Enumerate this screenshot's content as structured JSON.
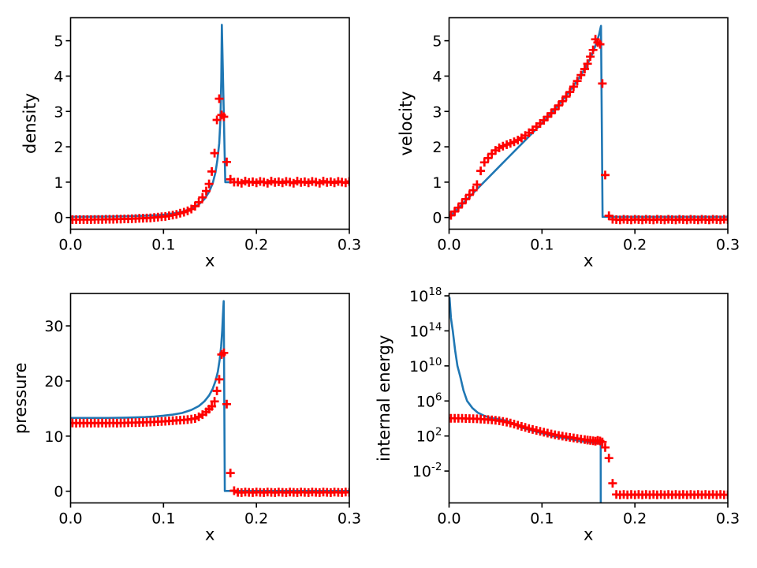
{
  "figure": {
    "background": "#ffffff",
    "description_title": "",
    "line_color": "#1f77b4",
    "marker_color": "#ff0000",
    "axis_color": "#000000"
  },
  "chart_data": {
    "type": "line",
    "layout": "2x2-panels",
    "grid": "off",
    "legend": "none",
    "shared_marker_x": [
      0.002,
      0.006,
      0.01,
      0.014,
      0.018,
      0.022,
      0.026,
      0.03,
      0.034,
      0.038,
      0.042,
      0.046,
      0.05,
      0.054,
      0.058,
      0.062,
      0.066,
      0.07,
      0.074,
      0.078,
      0.082,
      0.086,
      0.09,
      0.094,
      0.098,
      0.102,
      0.106,
      0.11,
      0.114,
      0.118,
      0.122,
      0.126,
      0.13,
      0.134,
      0.138,
      0.142,
      0.146,
      0.149,
      0.152,
      0.155,
      0.1575,
      0.16,
      0.1625,
      0.165,
      0.168,
      0.172,
      0.176,
      0.18,
      0.184,
      0.188,
      0.192,
      0.196,
      0.2,
      0.204,
      0.208,
      0.212,
      0.216,
      0.22,
      0.224,
      0.228,
      0.232,
      0.236,
      0.24,
      0.244,
      0.248,
      0.252,
      0.256,
      0.26,
      0.264,
      0.268,
      0.272,
      0.276,
      0.28,
      0.284,
      0.288,
      0.292,
      0.296,
      0.3
    ],
    "panels": [
      {
        "id": "density",
        "xlabel": "x",
        "ylabel": "density",
        "yscale": "linear",
        "xlim": [
          0,
          0.3
        ],
        "ylim": [
          -0.33,
          5.65
        ],
        "xticks": [
          0,
          0.1,
          0.2,
          0.3
        ],
        "xticklabels": [
          "0.0",
          "0.1",
          "0.2",
          "0.3"
        ],
        "yticks": [
          0,
          1,
          2,
          3,
          4,
          5
        ],
        "yticklabels": [
          "0",
          "1",
          "2",
          "3",
          "4",
          "5"
        ],
        "line": {
          "x": [
            0,
            0.02,
            0.04,
            0.06,
            0.08,
            0.09,
            0.1,
            0.11,
            0.12,
            0.13,
            0.138,
            0.144,
            0.149,
            0.153,
            0.156,
            0.158,
            0.16,
            0.1613,
            0.1622,
            0.1628,
            0.1665,
            0.3
          ],
          "y": [
            0.02,
            0.022,
            0.027,
            0.035,
            0.05,
            0.062,
            0.08,
            0.112,
            0.16,
            0.25,
            0.37,
            0.52,
            0.72,
            0.97,
            1.28,
            1.63,
            2.1,
            2.8,
            3.9,
            5.45,
            1.0,
            1.0
          ]
        },
        "markers_y": [
          -0.06,
          -0.06,
          -0.06,
          -0.06,
          -0.06,
          -0.06,
          -0.055,
          -0.055,
          -0.055,
          -0.05,
          -0.05,
          -0.05,
          -0.045,
          -0.045,
          -0.04,
          -0.04,
          -0.035,
          -0.03,
          -0.025,
          -0.02,
          -0.015,
          -0.01,
          0.0,
          0.01,
          0.02,
          0.03,
          0.05,
          0.07,
          0.09,
          0.12,
          0.15,
          0.19,
          0.24,
          0.32,
          0.43,
          0.57,
          0.75,
          0.95,
          1.3,
          1.82,
          2.76,
          3.36,
          2.9,
          2.85,
          1.57,
          1.08,
          1.0,
          1.0,
          0.97,
          1.03,
          0.99,
          1.01,
          0.98,
          1.02,
          1.0,
          0.97,
          1.03,
          0.99,
          1.01,
          0.98,
          1.02,
          1.0,
          0.97,
          1.03,
          0.99,
          1.01,
          0.98,
          1.02,
          1.0,
          0.97,
          1.03,
          0.99,
          1.01,
          0.98,
          1.02,
          1.0,
          0.98,
          1.02
        ]
      },
      {
        "id": "velocity",
        "xlabel": "x",
        "ylabel": "velocity",
        "yscale": "linear",
        "xlim": [
          0,
          0.3
        ],
        "ylim": [
          -0.33,
          5.65
        ],
        "xticks": [
          0,
          0.1,
          0.2,
          0.3
        ],
        "xticklabels": [
          "0.0",
          "0.1",
          "0.2",
          "0.3"
        ],
        "yticks": [
          0,
          1,
          2,
          3,
          4,
          5
        ],
        "yticklabels": [
          "0",
          "1",
          "2",
          "3",
          "4",
          "5"
        ],
        "line": {
          "x": [
            0,
            0.03,
            0.06,
            0.09,
            0.1,
            0.11,
            0.12,
            0.13,
            0.14,
            0.147,
            0.152,
            0.156,
            0.159,
            0.1615,
            0.1635,
            0.1652,
            0.3
          ],
          "y": [
            0,
            0.8,
            1.6,
            2.4,
            2.67,
            2.95,
            3.25,
            3.58,
            3.95,
            4.25,
            4.5,
            4.75,
            4.97,
            5.18,
            5.42,
            0.02,
            0.02
          ]
        },
        "markers_y": [
          0.06,
          0.17,
          0.28,
          0.4,
          0.52,
          0.64,
          0.77,
          0.93,
          1.32,
          1.56,
          1.68,
          1.8,
          1.9,
          1.97,
          2.02,
          2.06,
          2.1,
          2.14,
          2.19,
          2.25,
          2.32,
          2.4,
          2.48,
          2.57,
          2.66,
          2.75,
          2.85,
          2.95,
          3.06,
          3.17,
          3.29,
          3.42,
          3.55,
          3.7,
          3.86,
          4.03,
          4.2,
          4.35,
          4.55,
          4.74,
          5.04,
          4.95,
          4.9,
          3.79,
          1.2,
          0.05,
          -0.05,
          -0.06,
          -0.07,
          -0.05,
          -0.06,
          -0.07,
          -0.05,
          -0.06,
          -0.07,
          -0.05,
          -0.06,
          -0.07,
          -0.05,
          -0.06,
          -0.07,
          -0.05,
          -0.06,
          -0.07,
          -0.05,
          -0.06,
          -0.07,
          -0.05,
          -0.06,
          -0.07,
          -0.05,
          -0.06,
          -0.07,
          -0.05,
          -0.06,
          -0.07,
          -0.05,
          -0.06
        ]
      },
      {
        "id": "pressure",
        "xlabel": "x",
        "ylabel": "pressure",
        "yscale": "linear",
        "xlim": [
          0,
          0.3
        ],
        "ylim": [
          -2.12,
          35.88
        ],
        "xticks": [
          0,
          0.1,
          0.2,
          0.3
        ],
        "xticklabels": [
          "0.0",
          "0.1",
          "0.2",
          "0.3"
        ],
        "yticks": [
          0,
          10,
          20,
          30
        ],
        "yticklabels": [
          "0",
          "10",
          "20",
          "30"
        ],
        "line": {
          "x": [
            0,
            0.04,
            0.06,
            0.08,
            0.09,
            0.1,
            0.11,
            0.12,
            0.13,
            0.138,
            0.144,
            0.149,
            0.153,
            0.156,
            0.1585,
            0.1605,
            0.162,
            0.1632,
            0.164,
            0.1648,
            0.166,
            0.3
          ],
          "y": [
            13.3,
            13.3,
            13.35,
            13.45,
            13.55,
            13.7,
            13.9,
            14.2,
            14.75,
            15.45,
            16.3,
            17.35,
            18.6,
            20.0,
            21.7,
            23.9,
            26.2,
            29.2,
            32.0,
            34.5,
            0.05,
            0.05
          ]
        },
        "markers_y": [
          12.4,
          12.35,
          12.4,
          12.35,
          12.4,
          12.35,
          12.4,
          12.35,
          12.4,
          12.35,
          12.4,
          12.4,
          12.35,
          12.4,
          12.4,
          12.42,
          12.45,
          12.45,
          12.48,
          12.5,
          12.52,
          12.55,
          12.58,
          12.62,
          12.65,
          12.7,
          12.75,
          12.8,
          12.85,
          12.9,
          12.95,
          13.0,
          13.1,
          13.2,
          13.5,
          13.9,
          14.4,
          14.9,
          15.4,
          16.3,
          18.2,
          20.3,
          24.8,
          25.1,
          15.8,
          3.3,
          0.1,
          -0.2,
          -0.25,
          -0.15,
          -0.2,
          -0.25,
          -0.15,
          -0.2,
          -0.25,
          -0.15,
          -0.2,
          -0.25,
          -0.15,
          -0.2,
          -0.25,
          -0.15,
          -0.2,
          -0.25,
          -0.15,
          -0.2,
          -0.25,
          -0.15,
          -0.2,
          -0.25,
          -0.15,
          -0.2,
          -0.25,
          -0.15,
          -0.2,
          -0.25,
          -0.15,
          -0.2
        ]
      },
      {
        "id": "internal-energy",
        "xlabel": "x",
        "ylabel": "internal energy",
        "yscale": "log",
        "xlim": [
          0,
          0.3
        ],
        "ylim": [
          2.3e-06,
          1.86e+18
        ],
        "xticks": [
          0,
          0.1,
          0.2,
          0.3
        ],
        "xticklabels": [
          "0.0",
          "0.1",
          "0.2",
          "0.3"
        ],
        "yticks": [
          0.01,
          100.0,
          1000000.0,
          10000000000.0,
          100000000000000.0,
          1e+18
        ],
        "yticklabels": [
          "10^-2",
          "10^2",
          "10^6",
          "10^10",
          "10^14",
          "10^18"
        ],
        "line": {
          "x": [
            0.0005,
            0.002,
            0.004,
            0.0065,
            0.009,
            0.012,
            0.0155,
            0.0194,
            0.025,
            0.031,
            0.038,
            0.045,
            0.052,
            0.0626,
            0.0768,
            0.09,
            0.111,
            0.125,
            0.14,
            0.15,
            0.159,
            0.1632,
            0.16325
          ],
          "y": [
            6e+17,
            3000000000000000.0,
            100000000000000.0,
            600000000000.0,
            10000000000.0,
            630000000.0,
            16000000.0,
            1000000.0,
            160000.0,
            45000.0,
            20000.0,
            11200.0,
            9000.0,
            5400.0,
            1000.0,
            400,
            100,
            56,
            28,
            20,
            15,
            13.5,
            3e-06
          ]
        },
        "markers_y": [
          10500,
          10500,
          10300,
          10300,
          10000,
          9800,
          9500,
          9100,
          8600,
          8100,
          7500,
          6900,
          6200,
          5400,
          4600,
          3800,
          3000,
          2300,
          1700,
          1250,
          950,
          720,
          560,
          430,
          340,
          270,
          215,
          170,
          140,
          115,
          96,
          81,
          70,
          60,
          51,
          44,
          38,
          34,
          31,
          28,
          26,
          32,
          27,
          21,
          4.9,
          0.3,
          0.0004,
          2.1e-05,
          1.9e-05,
          2.1e-05,
          1.9e-05,
          2.1e-05,
          1.9e-05,
          2.1e-05,
          1.9e-05,
          2.1e-05,
          1.9e-05,
          2.1e-05,
          1.9e-05,
          2.1e-05,
          1.9e-05,
          2.1e-05,
          1.9e-05,
          2.1e-05,
          1.9e-05,
          2.1e-05,
          1.9e-05,
          2.1e-05,
          1.9e-05,
          2.1e-05,
          1.9e-05,
          2.1e-05,
          1.9e-05,
          2.1e-05,
          1.9e-05,
          2.1e-05,
          1.9e-05,
          2e-05
        ]
      }
    ]
  }
}
